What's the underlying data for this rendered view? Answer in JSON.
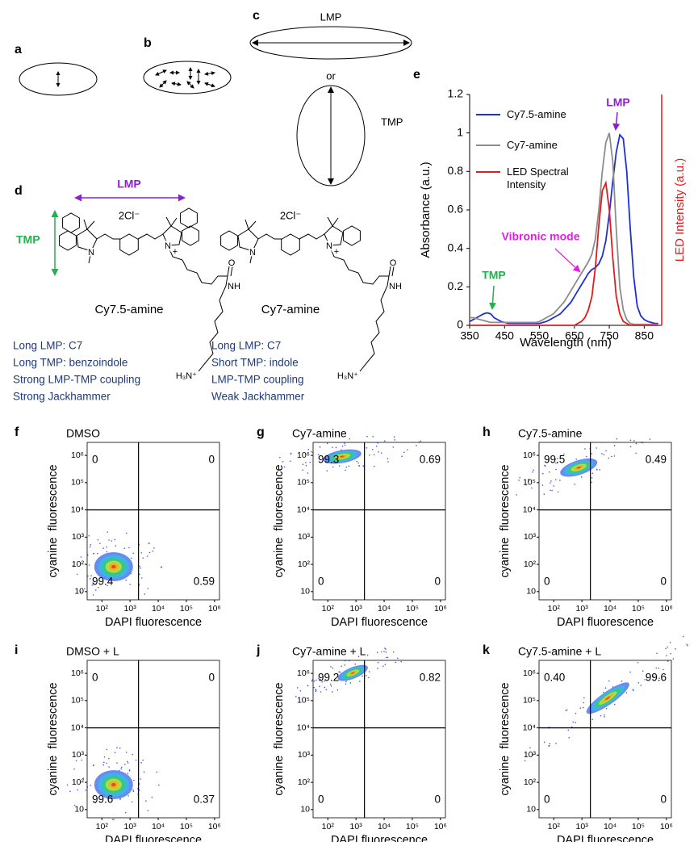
{
  "panels": {
    "a": "a",
    "b": "b",
    "c": "c",
    "d": "d",
    "e": "e",
    "f": "f",
    "g": "g",
    "h": "h",
    "i": "i",
    "j": "j",
    "k": "k"
  },
  "schematic": {
    "c_lmp": "LMP",
    "c_or": "or",
    "c_tmp": "TMP",
    "d_lmp": "LMP",
    "d_tmp": "TMP"
  },
  "atoms": {
    "n": "N",
    "plus": "+",
    "o": "O",
    "nh": "NH",
    "amine": "H₃N⁺"
  },
  "molecules": [
    {
      "name": "Cy7.5-amine",
      "counterion": "2Cl⁻",
      "notes": [
        "Long LMP: C7",
        "Long TMP: benzoindole",
        "Strong LMP-TMP coupling",
        "Strong Jackhammer"
      ]
    },
    {
      "name": "Cy7-amine",
      "counterion": "2Cl⁻",
      "notes": [
        "Long LMP: C7",
        "Short TMP: indole",
        "LMP-TMP coupling",
        "Weak Jackhammer"
      ]
    }
  ],
  "chart_data": [
    {
      "type": "line",
      "x_label": "Wavelength (nm)",
      "y_label": "Absorbance (a.u.)",
      "y2_label": "LED Intensity (a.u.)",
      "y2_color": "#e41a1c",
      "xlim": [
        350,
        900
      ],
      "ylim": [
        0,
        1.2
      ],
      "xticks": [
        350,
        450,
        550,
        650,
        750,
        850
      ],
      "yticks": [
        0,
        0.2,
        0.4,
        0.6,
        0.8,
        1,
        1.2
      ],
      "x": [
        350,
        360,
        370,
        380,
        390,
        400,
        410,
        420,
        430,
        440,
        450,
        460,
        470,
        480,
        490,
        500,
        510,
        520,
        530,
        540,
        550,
        560,
        570,
        580,
        590,
        600,
        610,
        620,
        630,
        640,
        650,
        660,
        670,
        680,
        690,
        700,
        710,
        720,
        730,
        740,
        750,
        760,
        770,
        780,
        790,
        800,
        810,
        820,
        830,
        840,
        850,
        860,
        870,
        880,
        890
      ],
      "series": [
        {
          "name": "Cy7.5-amine",
          "color": "#1f2fd6",
          "values": [
            0.02,
            0.03,
            0.04,
            0.05,
            0.06,
            0.065,
            0.06,
            0.04,
            0.03,
            0.02,
            0.015,
            0.01,
            0.01,
            0.01,
            0.01,
            0.01,
            0.01,
            0.01,
            0.01,
            0.01,
            0.01,
            0.015,
            0.02,
            0.03,
            0.04,
            0.05,
            0.06,
            0.08,
            0.1,
            0.12,
            0.15,
            0.18,
            0.21,
            0.24,
            0.27,
            0.29,
            0.3,
            0.32,
            0.36,
            0.44,
            0.58,
            0.75,
            0.9,
            0.99,
            0.97,
            0.8,
            0.5,
            0.25,
            0.1,
            0.05,
            0.03,
            0.02,
            0.015,
            0.01,
            0.01
          ]
        },
        {
          "name": "Cy7-amine",
          "color": "#8c8c8c",
          "values": [
            0.04,
            0.04,
            0.035,
            0.03,
            0.025,
            0.02,
            0.015,
            0.015,
            0.015,
            0.015,
            0.015,
            0.015,
            0.015,
            0.015,
            0.015,
            0.015,
            0.015,
            0.015,
            0.015,
            0.015,
            0.02,
            0.03,
            0.04,
            0.05,
            0.06,
            0.08,
            0.1,
            0.12,
            0.15,
            0.18,
            0.21,
            0.24,
            0.27,
            0.3,
            0.33,
            0.37,
            0.45,
            0.6,
            0.8,
            0.95,
            1,
            0.85,
            0.5,
            0.2,
            0.08,
            0.03,
            0.01,
            0.005,
            0.005,
            0.005,
            0.005,
            0.005,
            0.005,
            0.005,
            0.005
          ]
        },
        {
          "name": "LED Spectral Intensity",
          "color": "#e41a1c",
          "values": [
            0,
            0,
            0,
            0,
            0,
            0,
            0,
            0,
            0,
            0,
            0,
            0,
            0,
            0,
            0,
            0,
            0,
            0,
            0,
            0,
            0,
            0,
            0,
            0,
            0,
            0,
            0,
            0,
            0,
            0,
            0,
            0.01,
            0.02,
            0.04,
            0.08,
            0.15,
            0.3,
            0.52,
            0.7,
            0.74,
            0.6,
            0.35,
            0.15,
            0.06,
            0.02,
            0.01,
            0,
            0,
            0,
            0,
            0,
            0,
            0,
            0,
            0
          ]
        }
      ],
      "annotations": [
        {
          "text": "LMP",
          "color": "#8b1fd6"
        },
        {
          "text": "Vibronic mode",
          "color": "#e020e0"
        },
        {
          "text": "TMP",
          "color": "#22b14c"
        }
      ]
    },
    {
      "type": "density",
      "title": "DMSO",
      "x_label": "DAPI fluorescence",
      "y_label": "cyanine  fluorescence",
      "log_scale": true,
      "xlim": [
        30,
        1500000
      ],
      "ylim": [
        5,
        3000000
      ],
      "xticks": [
        {
          "value": 100,
          "label": "10²"
        },
        {
          "value": 1000,
          "label": "10³"
        },
        {
          "value": 10000,
          "label": "10⁴"
        },
        {
          "value": 100000,
          "label": "10⁵"
        },
        {
          "value": 1000000,
          "label": "10⁶"
        }
      ],
      "yticks": [
        10,
        {
          "value": 100,
          "label": "10²"
        },
        {
          "value": 1000,
          "label": "10³"
        },
        {
          "value": 10000,
          "label": "10⁴"
        },
        {
          "value": 100000,
          "label": "10⁵"
        },
        {
          "value": 1000000,
          "label": "10⁶"
        }
      ],
      "gate": [
        2000,
        10000
      ],
      "quadrants": [
        0,
        0,
        99.4,
        0.59
      ]
    },
    {
      "type": "density",
      "title": "Cy7-amine",
      "x_label": "DAPI fluorescence",
      "y_label": "cyanine  fluorescence",
      "log_scale": true,
      "xlim": [
        30,
        1500000
      ],
      "ylim": [
        5,
        3000000
      ],
      "xticks": [
        {
          "value": 100,
          "label": "10²"
        },
        {
          "value": 1000,
          "label": "10³"
        },
        {
          "value": 10000,
          "label": "10⁴"
        },
        {
          "value": 100000,
          "label": "10⁵"
        },
        {
          "value": 1000000,
          "label": "10⁶"
        }
      ],
      "yticks": [
        10,
        {
          "value": 100,
          "label": "10²"
        },
        {
          "value": 1000,
          "label": "10³"
        },
        {
          "value": 10000,
          "label": "10⁴"
        },
        {
          "value": 100000,
          "label": "10⁵"
        },
        {
          "value": 1000000,
          "label": "10⁶"
        }
      ],
      "gate": [
        2000,
        10000
      ],
      "quadrants": [
        99.3,
        0.69,
        0,
        0
      ]
    },
    {
      "type": "density",
      "title": "Cy7.5-amine",
      "x_label": "DAPI fluorescence",
      "y_label": "cyanine  fluorescence",
      "log_scale": true,
      "xlim": [
        30,
        1500000
      ],
      "ylim": [
        5,
        3000000
      ],
      "xticks": [
        {
          "value": 100,
          "label": "10²"
        },
        {
          "value": 1000,
          "label": "10³"
        },
        {
          "value": 10000,
          "label": "10⁴"
        },
        {
          "value": 100000,
          "label": "10⁵"
        },
        {
          "value": 1000000,
          "label": "10⁶"
        }
      ],
      "yticks": [
        10,
        {
          "value": 100,
          "label": "10²"
        },
        {
          "value": 1000,
          "label": "10³"
        },
        {
          "value": 10000,
          "label": "10⁴"
        },
        {
          "value": 100000,
          "label": "10⁵"
        },
        {
          "value": 1000000,
          "label": "10⁶"
        }
      ],
      "gate": [
        2000,
        10000
      ],
      "quadrants": [
        99.5,
        0.49,
        0,
        0
      ]
    },
    {
      "type": "density",
      "title": "DMSO + L",
      "x_label": "DAPI fluorescence",
      "y_label": "cyanine  fluorescence",
      "log_scale": true,
      "xlim": [
        30,
        1500000
      ],
      "ylim": [
        5,
        3000000
      ],
      "xticks": [
        {
          "value": 100,
          "label": "10²"
        },
        {
          "value": 1000,
          "label": "10³"
        },
        {
          "value": 10000,
          "label": "10⁴"
        },
        {
          "value": 100000,
          "label": "10⁵"
        },
        {
          "value": 1000000,
          "label": "10⁶"
        }
      ],
      "yticks": [
        10,
        {
          "value": 100,
          "label": "10²"
        },
        {
          "value": 1000,
          "label": "10³"
        },
        {
          "value": 10000,
          "label": "10⁴"
        },
        {
          "value": 100000,
          "label": "10⁵"
        },
        {
          "value": 1000000,
          "label": "10⁶"
        }
      ],
      "gate": [
        2000,
        10000
      ],
      "quadrants": [
        0,
        0,
        99.6,
        0.37
      ]
    },
    {
      "type": "density",
      "title": "Cy7-amine + L",
      "x_label": "DAPI fluorescence",
      "y_label": "cyanine  fluorescence",
      "log_scale": true,
      "xlim": [
        30,
        1500000
      ],
      "ylim": [
        5,
        3000000
      ],
      "xticks": [
        {
          "value": 100,
          "label": "10²"
        },
        {
          "value": 1000,
          "label": "10³"
        },
        {
          "value": 10000,
          "label": "10⁴"
        },
        {
          "value": 100000,
          "label": "10⁵"
        },
        {
          "value": 1000000,
          "label": "10⁶"
        }
      ],
      "yticks": [
        10,
        {
          "value": 100,
          "label": "10²"
        },
        {
          "value": 1000,
          "label": "10³"
        },
        {
          "value": 10000,
          "label": "10⁴"
        },
        {
          "value": 100000,
          "label": "10⁵"
        },
        {
          "value": 1000000,
          "label": "10⁶"
        }
      ],
      "gate": [
        2000,
        10000
      ],
      "quadrants": [
        99.2,
        0.82,
        0,
        0
      ]
    },
    {
      "type": "density",
      "title": "Cy7.5-amine + L",
      "x_label": "DAPI fluorescence",
      "y_label": "cyanine  fluorescence",
      "log_scale": true,
      "xlim": [
        30,
        1500000
      ],
      "ylim": [
        5,
        3000000
      ],
      "xticks": [
        {
          "value": 100,
          "label": "10²"
        },
        {
          "value": 1000,
          "label": "10³"
        },
        {
          "value": 10000,
          "label": "10⁴"
        },
        {
          "value": 100000,
          "label": "10⁵"
        },
        {
          "value": 1000000,
          "label": "10⁶"
        }
      ],
      "yticks": [
        10,
        {
          "value": 100,
          "label": "10²"
        },
        {
          "value": 1000,
          "label": "10³"
        },
        {
          "value": 10000,
          "label": "10⁴"
        },
        {
          "value": 100000,
          "label": "10⁵"
        },
        {
          "value": 1000000,
          "label": "10⁶"
        }
      ],
      "gate": [
        2000,
        10000
      ],
      "quadrants": [
        0.4,
        99.6,
        0,
        0
      ],
      "value_labels": [
        "0.40",
        "99.6",
        "0",
        "0"
      ]
    }
  ]
}
